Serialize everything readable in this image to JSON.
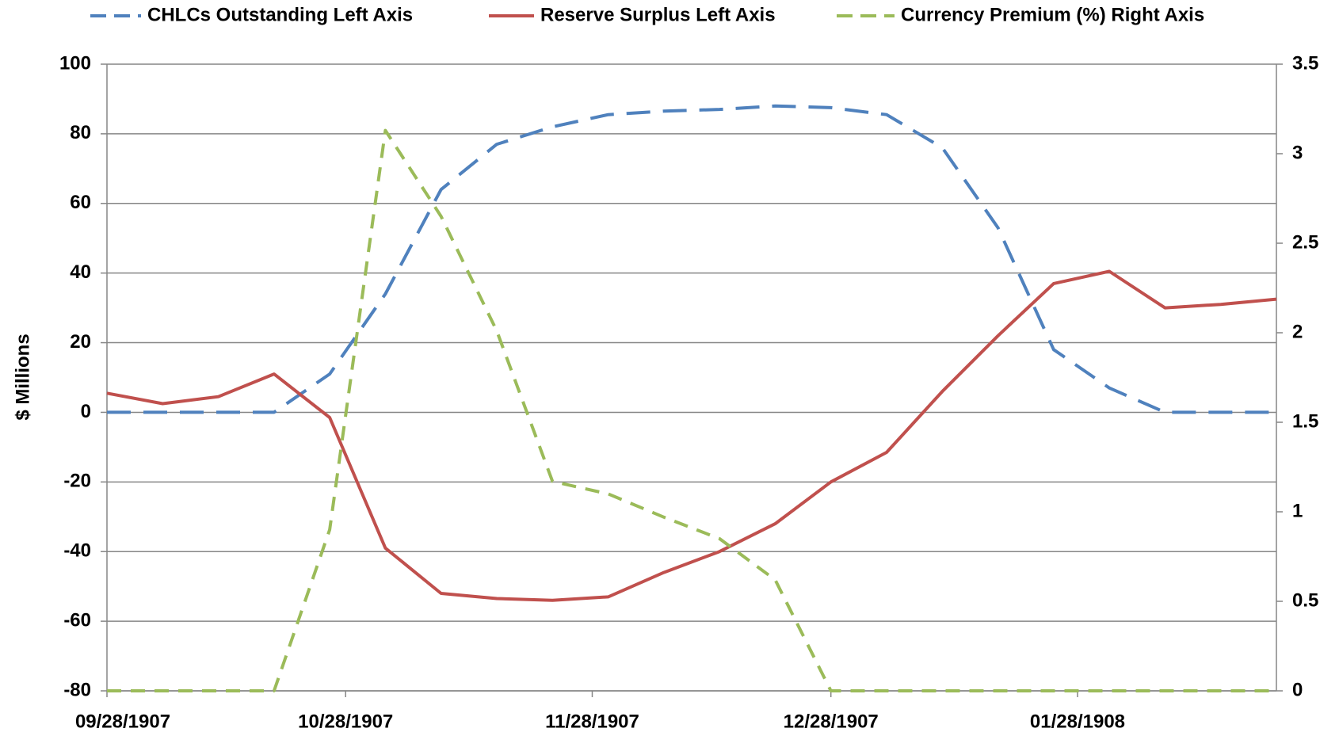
{
  "chart_data": {
    "type": "line",
    "y_label": "$ Millions",
    "x": [
      "09/28/1907",
      "10/05/1907",
      "10/12/1907",
      "10/19/1907",
      "10/26/1907",
      "11/02/1907",
      "11/09/1907",
      "11/16/1907",
      "11/23/1907",
      "11/30/1907",
      "12/07/1907",
      "12/14/1907",
      "12/21/1907",
      "12/28/1907",
      "01/04/1908",
      "01/11/1908",
      "01/18/1908",
      "01/25/1908",
      "02/01/1908",
      "02/08/1908",
      "02/15/1908",
      "02/22/1908"
    ],
    "xlim": [
      "09/28/1907",
      "02/22/1908"
    ],
    "xticks": [
      "09/28/1907",
      "10/28/1907",
      "11/28/1907",
      "12/28/1907",
      "01/28/1908"
    ],
    "ylim": [
      -80,
      100
    ],
    "yticks": [
      -80,
      -60,
      -40,
      -20,
      0,
      20,
      40,
      60,
      80,
      100
    ],
    "y2lim": [
      0,
      3.5
    ],
    "y2ticks": [
      0,
      0.5,
      1,
      1.5,
      2,
      2.5,
      3,
      3.5
    ],
    "grid": true,
    "legend": "top",
    "series": [
      {
        "name": "CHLCs Outstanding Left Axis",
        "color": "#4f81bd",
        "line_style": "long-dash",
        "values": [
          0,
          0,
          0,
          0,
          11,
          34,
          64,
          77,
          82,
          85.5,
          86.5,
          87,
          88,
          87.5,
          85.5,
          76,
          53,
          18,
          7,
          0,
          0,
          0
        ]
      },
      {
        "name": "Reserve Surplus Left Axis",
        "color": "#c0504d",
        "line_style": "solid",
        "values": [
          5.5,
          2.5,
          4.5,
          11,
          -1.5,
          -39,
          -52,
          -53.5,
          -54,
          -53,
          -46,
          -40,
          -32,
          -20,
          -11.5,
          6,
          22,
          37,
          40.5,
          30,
          31,
          32.5
        ]
      },
      {
        "name": "Currency Premium (%) Right Axis",
        "color": "#9bbb59",
        "line_style": "dash",
        "axis": "y2",
        "values": [
          0,
          0,
          0,
          0,
          0.9,
          3.13,
          2.65,
          2.01,
          1.17,
          1.1,
          0.97,
          0.85,
          0.62,
          0,
          0,
          0,
          0,
          0,
          0,
          0,
          0,
          0
        ]
      }
    ]
  }
}
